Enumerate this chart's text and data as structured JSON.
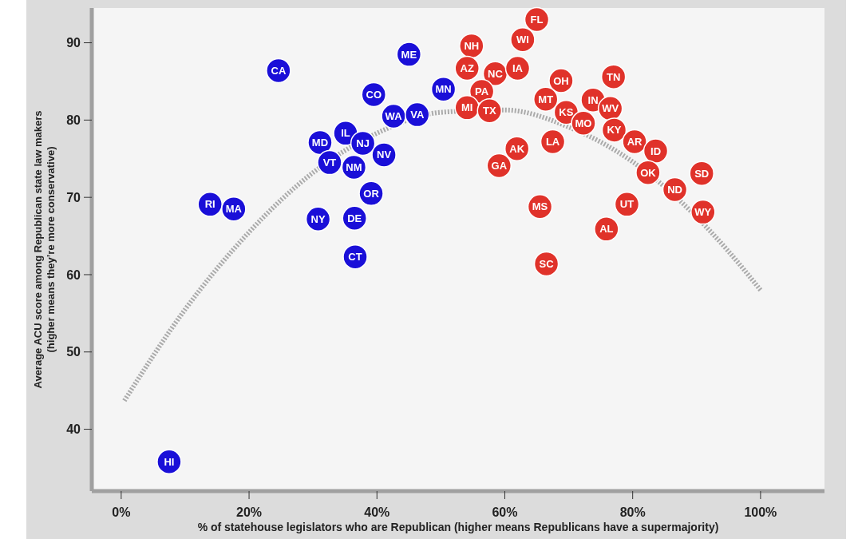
{
  "chart_data": {
    "type": "scatter",
    "xlabel": "% of statehouse legislators who are Republican (higher means Republicans have a supermajority)",
    "ylabel": "Average ACU score among Republican state law makers\n(higher means they’re more conservative)",
    "xlim": [
      -4.6,
      110
    ],
    "ylim": [
      32,
      94.5
    ],
    "xticks": [
      {
        "value": 0,
        "label": "0%"
      },
      {
        "value": 20,
        "label": "20%"
      },
      {
        "value": 40,
        "label": "40%"
      },
      {
        "value": 60,
        "label": "60%"
      },
      {
        "value": 80,
        "label": "80%"
      },
      {
        "value": 100,
        "label": "100%"
      }
    ],
    "yticks": [
      40,
      50,
      60,
      70,
      80,
      90
    ],
    "grid": false,
    "marker": "circle",
    "series": [
      {
        "type": "line",
        "color": "#aaaaaa",
        "line_style": "dotted",
        "marker": "none",
        "x": [
          0.5,
          10,
          20,
          30,
          40,
          50,
          60,
          70,
          80,
          95,
          100
        ],
        "values": [
          43.7,
          55.5,
          65.5,
          73.2,
          78.3,
          81.0,
          81.3,
          79.1,
          74.6,
          63.0,
          58.0
        ]
      },
      {
        "color": "#1a0fd8",
        "x": [
          24.6,
          45.0,
          39.5,
          50.4,
          42.6,
          46.3,
          35.1,
          31.1,
          37.8,
          32.6,
          36.4,
          41.1,
          39.1,
          13.9,
          17.6,
          30.8,
          36.5,
          36.6,
          7.5
        ],
        "values": [
          86.4,
          88.5,
          83.3,
          84.0,
          80.5,
          80.7,
          78.3,
          77.1,
          77.0,
          74.5,
          73.9,
          75.5,
          70.5,
          69.1,
          68.5,
          67.2,
          67.3,
          62.3,
          35.8
        ],
        "value_labels": [
          "CA",
          "ME",
          "CO",
          "MN",
          "WA",
          "VA",
          "IL",
          "MD",
          "NJ",
          "VT",
          "NM",
          "NV",
          "OR",
          "RI",
          "MA",
          "NY",
          "DE",
          "CT",
          "HI"
        ]
      },
      {
        "color": "#e0322a",
        "x": [
          65.0,
          54.8,
          62.8,
          54.1,
          58.5,
          62.0,
          56.4,
          68.8,
          77.0,
          66.4,
          73.8,
          54.1,
          57.6,
          69.6,
          76.5,
          72.3,
          77.1,
          80.3,
          61.9,
          67.5,
          83.6,
          59.1,
          82.4,
          90.8,
          86.6,
          65.5,
          79.1,
          91.0,
          75.9,
          66.5
        ],
        "values": [
          93.0,
          89.6,
          90.4,
          86.7,
          86.0,
          86.7,
          83.7,
          85.1,
          85.6,
          82.7,
          82.6,
          81.6,
          81.2,
          81.0,
          81.5,
          79.6,
          78.7,
          77.2,
          76.3,
          77.2,
          76.0,
          74.1,
          73.2,
          73.1,
          71.0,
          68.8,
          69.1,
          68.1,
          65.9,
          61.4
        ],
        "value_labels": [
          "FL",
          "NH",
          "WI",
          "AZ",
          "NC",
          "IA",
          "PA",
          "OH",
          "TN",
          "MT",
          "IN",
          "MI",
          "TX",
          "KS",
          "WV",
          "MO",
          "KY",
          "AR",
          "AK",
          "LA",
          "ID",
          "GA",
          "OK",
          "SD",
          "ND",
          "MS",
          "UT",
          "WY",
          "AL",
          "SC"
        ]
      }
    ]
  }
}
